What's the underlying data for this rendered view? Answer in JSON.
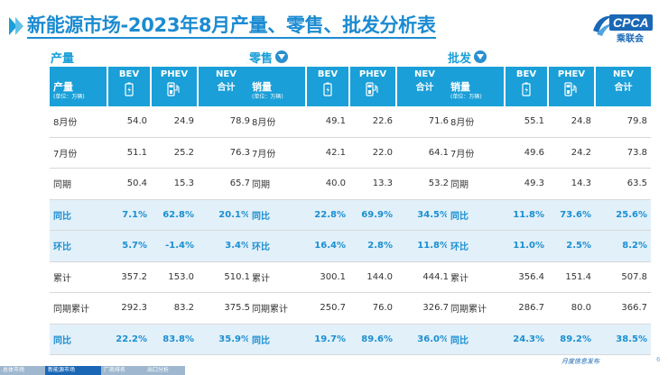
{
  "page": {
    "title": "新能源市场-2023年8月产量、零售、批发分析表",
    "logo_text": "CPCA",
    "logo_sub": "乘联会",
    "publisher": "月度信息发布",
    "page_number": "6",
    "footer_tabs": [
      "总体市场",
      "新能源市场",
      "厂商排名",
      "出口分析"
    ],
    "active_footer_tab": 1
  },
  "columns": {
    "bev": "BEV",
    "phev": "PHEV",
    "nev": "NEV",
    "nev_sub": "合计",
    "unit": "(单位：万辆)"
  },
  "sections": [
    {
      "title": "产量",
      "header_label": "产量",
      "rows": [
        {
          "label": "8月份",
          "bev": "54.0",
          "phev": "24.9",
          "nev": "78.9",
          "hl": false
        },
        {
          "label": "7月份",
          "bev": "51.1",
          "phev": "25.2",
          "nev": "76.3",
          "hl": false
        },
        {
          "label": "同期",
          "bev": "50.4",
          "phev": "15.3",
          "nev": "65.7",
          "hl": false
        },
        {
          "label": "同比",
          "bev": "7.1%",
          "phev": "62.8%",
          "nev": "20.1%",
          "hl": true
        },
        {
          "label": "环比",
          "bev": "5.7%",
          "phev": "-1.4%",
          "nev": "3.4%",
          "hl": true
        },
        {
          "label": "累计",
          "bev": "357.2",
          "phev": "153.0",
          "nev": "510.1",
          "hl": false
        },
        {
          "label": "同期累计",
          "bev": "292.3",
          "phev": "83.2",
          "nev": "375.5",
          "hl": false
        },
        {
          "label": "同比",
          "bev": "22.2%",
          "phev": "83.8%",
          "nev": "35.9%",
          "hl": true
        }
      ]
    },
    {
      "title": "零售",
      "header_label": "销量",
      "rows": [
        {
          "label": "8月份",
          "bev": "49.1",
          "phev": "22.6",
          "nev": "71.6",
          "hl": false
        },
        {
          "label": "7月份",
          "bev": "42.1",
          "phev": "22.0",
          "nev": "64.1",
          "hl": false
        },
        {
          "label": "同期",
          "bev": "40.0",
          "phev": "13.3",
          "nev": "53.2",
          "hl": false
        },
        {
          "label": "同比",
          "bev": "22.8%",
          "phev": "69.9%",
          "nev": "34.5%",
          "hl": true
        },
        {
          "label": "环比",
          "bev": "16.4%",
          "phev": "2.8%",
          "nev": "11.8%",
          "hl": true
        },
        {
          "label": "累计",
          "bev": "300.1",
          "phev": "144.0",
          "nev": "444.1",
          "hl": false
        },
        {
          "label": "同期累计",
          "bev": "250.7",
          "phev": "76.0",
          "nev": "326.7",
          "hl": false
        },
        {
          "label": "同比",
          "bev": "19.7%",
          "phev": "89.6%",
          "nev": "36.0%",
          "hl": true
        }
      ]
    },
    {
      "title": "批发",
      "header_label": "销量",
      "rows": [
        {
          "label": "8月份",
          "bev": "55.1",
          "phev": "24.8",
          "nev": "79.8",
          "hl": false
        },
        {
          "label": "7月份",
          "bev": "49.6",
          "phev": "24.2",
          "nev": "73.8",
          "hl": false
        },
        {
          "label": "同期",
          "bev": "49.3",
          "phev": "14.3",
          "nev": "63.5",
          "hl": false
        },
        {
          "label": "同比",
          "bev": "11.8%",
          "phev": "73.6%",
          "nev": "25.6%",
          "hl": true
        },
        {
          "label": "环比",
          "bev": "11.0%",
          "phev": "2.5%",
          "nev": "8.2%",
          "hl": true
        },
        {
          "label": "累计",
          "bev": "356.4",
          "phev": "151.4",
          "nev": "507.8",
          "hl": false
        },
        {
          "label": "同期累计",
          "bev": "286.7",
          "phev": "80.0",
          "nev": "366.7",
          "hl": false
        },
        {
          "label": "同比",
          "bev": "24.3%",
          "phev": "89.2%",
          "nev": "38.5%",
          "hl": true
        }
      ]
    }
  ],
  "colors": {
    "accent": "#1a9fd8",
    "title": "#1b8bd1",
    "highlight_bg": "#e2f0fa",
    "footer": "#1a67b5"
  }
}
